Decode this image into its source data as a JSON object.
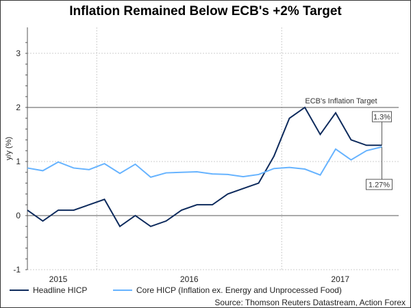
{
  "chart_data": {
    "type": "line",
    "title": "Inflation Remained Below ECB's +2% Target",
    "ylabel": "y/y (%)",
    "xlabel": "",
    "ylim": [
      -1,
      3.48
    ],
    "yticks": [
      "-1",
      "0",
      "1",
      "2",
      "3"
    ],
    "x": [
      "Aug 2015",
      "Sep 2015",
      "Oct 2015",
      "Nov 2015",
      "Dec 2015",
      "Jan 2016",
      "Feb 2016",
      "Mar 2016",
      "Apr 2016",
      "May 2016",
      "Jun 2016",
      "Jul 2016",
      "Aug 2016",
      "Sep 2016",
      "Oct 2016",
      "Nov 2016",
      "Dec 2016",
      "Jan 2017",
      "Feb 2017",
      "Mar 2017",
      "Apr 2017",
      "May 2017",
      "Jun 2017",
      "Jul 2017"
    ],
    "xtick_labels": [
      {
        "label": "2015",
        "pos": 2
      },
      {
        "label": "2016",
        "pos": 10.5
      },
      {
        "label": "2017",
        "pos": 20.3
      }
    ],
    "year_gridlines": [
      4.5,
      16.5
    ],
    "series": [
      {
        "name": "Headline HICP",
        "color": "#0d2a5c",
        "values": [
          0.1,
          -0.1,
          0.1,
          0.1,
          0.2,
          0.3,
          -0.2,
          0.0,
          -0.2,
          -0.1,
          0.1,
          0.2,
          0.2,
          0.4,
          0.5,
          0.6,
          1.1,
          1.8,
          2.0,
          1.5,
          1.9,
          1.4,
          1.3,
          1.3
        ]
      },
      {
        "name": "Core HICP (Inflation ex. Energy and Unprocessed Food)",
        "color": "#66b3ff",
        "values": [
          0.88,
          0.83,
          0.99,
          0.88,
          0.85,
          0.96,
          0.78,
          0.95,
          0.71,
          0.79,
          0.8,
          0.81,
          0.77,
          0.76,
          0.72,
          0.76,
          0.87,
          0.89,
          0.86,
          0.75,
          1.23,
          1.03,
          1.2,
          1.27
        ]
      }
    ],
    "reference_line": {
      "value": 2,
      "label": "ECB's Inflation Target"
    },
    "annotations": [
      {
        "series": 0,
        "label": "1.3%"
      },
      {
        "series": 1,
        "label": "1.27%"
      }
    ],
    "legend": "bottom",
    "source": "Source: Thomson Reuters Datastream, Action Forex"
  }
}
